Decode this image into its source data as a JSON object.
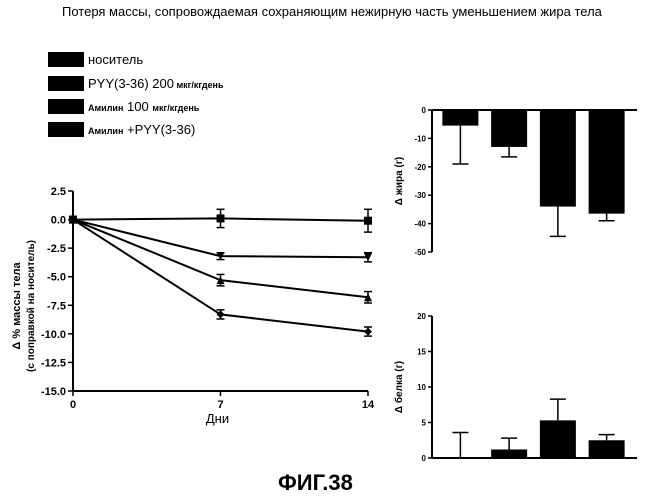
{
  "title": "Потеря массы, сопровождаемая сохраняющим нежирную часть уменьшением жира тела",
  "legend": {
    "items": [
      {
        "parts": [
          {
            "text": "носитель",
            "size": "l"
          }
        ]
      },
      {
        "parts": [
          {
            "text": "PYY(3-36) 200",
            "size": "l"
          },
          {
            "text": " мкг/кгдень",
            "size": "s"
          }
        ]
      },
      {
        "parts": [
          {
            "text": "Амилин",
            "size": "s"
          },
          {
            "text": " 100 ",
            "size": "l"
          },
          {
            "text": "мкг/кгдень",
            "size": "s"
          }
        ]
      },
      {
        "parts": [
          {
            "text": "Амилин",
            "size": "s"
          },
          {
            "text": " +PYY(3-36)",
            "size": "l"
          }
        ]
      }
    ]
  },
  "figure_label": "ФИГ.38",
  "chart_data": [
    {
      "type": "line",
      "xlabel": "Дни",
      "ylabel": "Δ % массы тела",
      "ylabel2": "(с поправкой на носитель)",
      "x_ticks": [
        0,
        7,
        14
      ],
      "xlim": [
        0,
        14
      ],
      "ylim": [
        -15,
        2.5
      ],
      "y_ticks": [
        2.5,
        0.0,
        -2.5,
        -5.0,
        -7.5,
        -10.0,
        -12.5,
        -15.0
      ],
      "y_tick_labels": [
        "2.5",
        "0.0",
        "-2.5",
        "-5.0",
        "-7.5",
        "-10.0",
        "-12.5",
        "-15.0"
      ],
      "series": [
        {
          "marker": "square",
          "x": [
            0,
            7,
            14
          ],
          "values": [
            0,
            0.1,
            -0.1
          ],
          "errors": [
            0,
            0.8,
            1.0
          ]
        },
        {
          "marker": "triangle-down",
          "x": [
            0,
            7,
            14
          ],
          "values": [
            0,
            -3.2,
            -3.3
          ],
          "errors": [
            0,
            0.3,
            0.4
          ]
        },
        {
          "marker": "triangle-up",
          "x": [
            0,
            7,
            14
          ],
          "values": [
            0,
            -5.3,
            -6.8
          ],
          "errors": [
            0,
            0.5,
            0.5
          ]
        },
        {
          "marker": "diamond",
          "x": [
            0,
            7,
            14
          ],
          "values": [
            0,
            -8.3,
            -9.8
          ],
          "errors": [
            0,
            0.4,
            0.4
          ]
        }
      ]
    },
    {
      "type": "bar",
      "ylabel": "Δ жира (г)",
      "ylim": [
        -50,
        0
      ],
      "y_ticks": [
        0,
        -10,
        -20,
        -30,
        -40,
        -50
      ],
      "y_tick_labels": [
        "0",
        "-10",
        "-20",
        "-30",
        "-40",
        "-50"
      ],
      "values": [
        -5.5,
        -13,
        -34,
        -36.5
      ],
      "errors": [
        13.5,
        3.5,
        10.5,
        2.5
      ]
    },
    {
      "type": "bar",
      "ylabel": "Δ белка (г)",
      "ylim": [
        0,
        20
      ],
      "y_ticks": [
        0,
        5,
        10,
        15,
        20
      ],
      "y_tick_labels": [
        "0",
        "5",
        "10",
        "15",
        "20"
      ],
      "values": [
        0,
        1.2,
        5.3,
        2.5
      ],
      "errors": [
        3.6,
        1.6,
        3.0,
        0.8
      ]
    }
  ]
}
